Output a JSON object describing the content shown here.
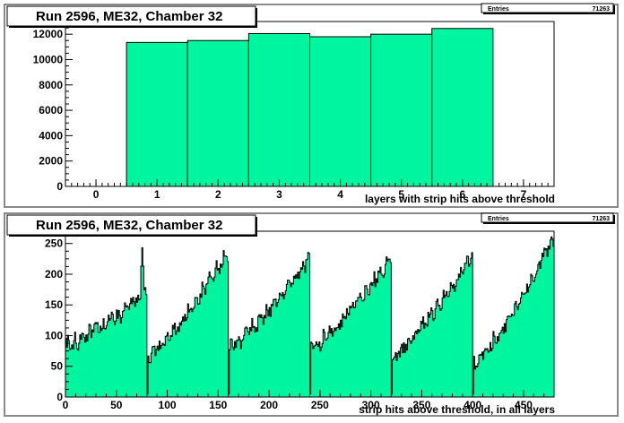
{
  "chart_data": [
    {
      "type": "bar",
      "title": "Run 2596, ME32, Chamber 32",
      "stats": {
        "label": "Entries",
        "value": "71263"
      },
      "xlabel": "layers with strip hits above threshold",
      "ylabel": "",
      "xlim": [
        -0.5,
        7.5
      ],
      "ylim": [
        0,
        13000
      ],
      "xticks": [
        "0",
        "1",
        "2",
        "3",
        "4",
        "5",
        "6",
        "7"
      ],
      "yticks": [
        "0",
        "2000",
        "4000",
        "6000",
        "8000",
        "10000",
        "12000"
      ],
      "bins": [
        {
          "x": 1,
          "value": 11350
        },
        {
          "x": 2,
          "value": 11500
        },
        {
          "x": 3,
          "value": 12050
        },
        {
          "x": 4,
          "value": 11800
        },
        {
          "x": 5,
          "value": 12000
        },
        {
          "x": 6,
          "value": 12450
        }
      ],
      "fill_color": "#00f5a0"
    },
    {
      "type": "bar",
      "title": "Run 2596, ME32, Chamber 32",
      "stats": {
        "label": "Entries",
        "value": "71263"
      },
      "xlabel": "strip hits above threshold, in all layers",
      "ylabel": "",
      "xlim": [
        0,
        480
      ],
      "ylim": [
        0,
        270
      ],
      "xticks": [
        "0",
        "50",
        "100",
        "150",
        "200",
        "250",
        "300",
        "350",
        "400",
        "450"
      ],
      "yticks": [
        "0",
        "50",
        "100",
        "150",
        "200",
        "250"
      ],
      "bin_width": 1,
      "segments": [
        {
          "x_start": 0,
          "x_end": 80,
          "start_value": 85,
          "end_value": 170,
          "peak": {
            "x": 75,
            "value": 243
          }
        },
        {
          "x_start": 80,
          "x_end": 160,
          "start_value": 65,
          "end_value": 238,
          "peak": null
        },
        {
          "x_start": 160,
          "x_end": 240,
          "start_value": 80,
          "end_value": 228,
          "peak": null
        },
        {
          "x_start": 240,
          "x_end": 320,
          "start_value": 80,
          "end_value": 228,
          "peak": null
        },
        {
          "x_start": 320,
          "x_end": 400,
          "start_value": 65,
          "end_value": 235,
          "peak": null
        },
        {
          "x_start": 400,
          "x_end": 480,
          "start_value": 55,
          "end_value": 260,
          "peak": null
        }
      ],
      "fill_color": "#00f5a0"
    }
  ]
}
